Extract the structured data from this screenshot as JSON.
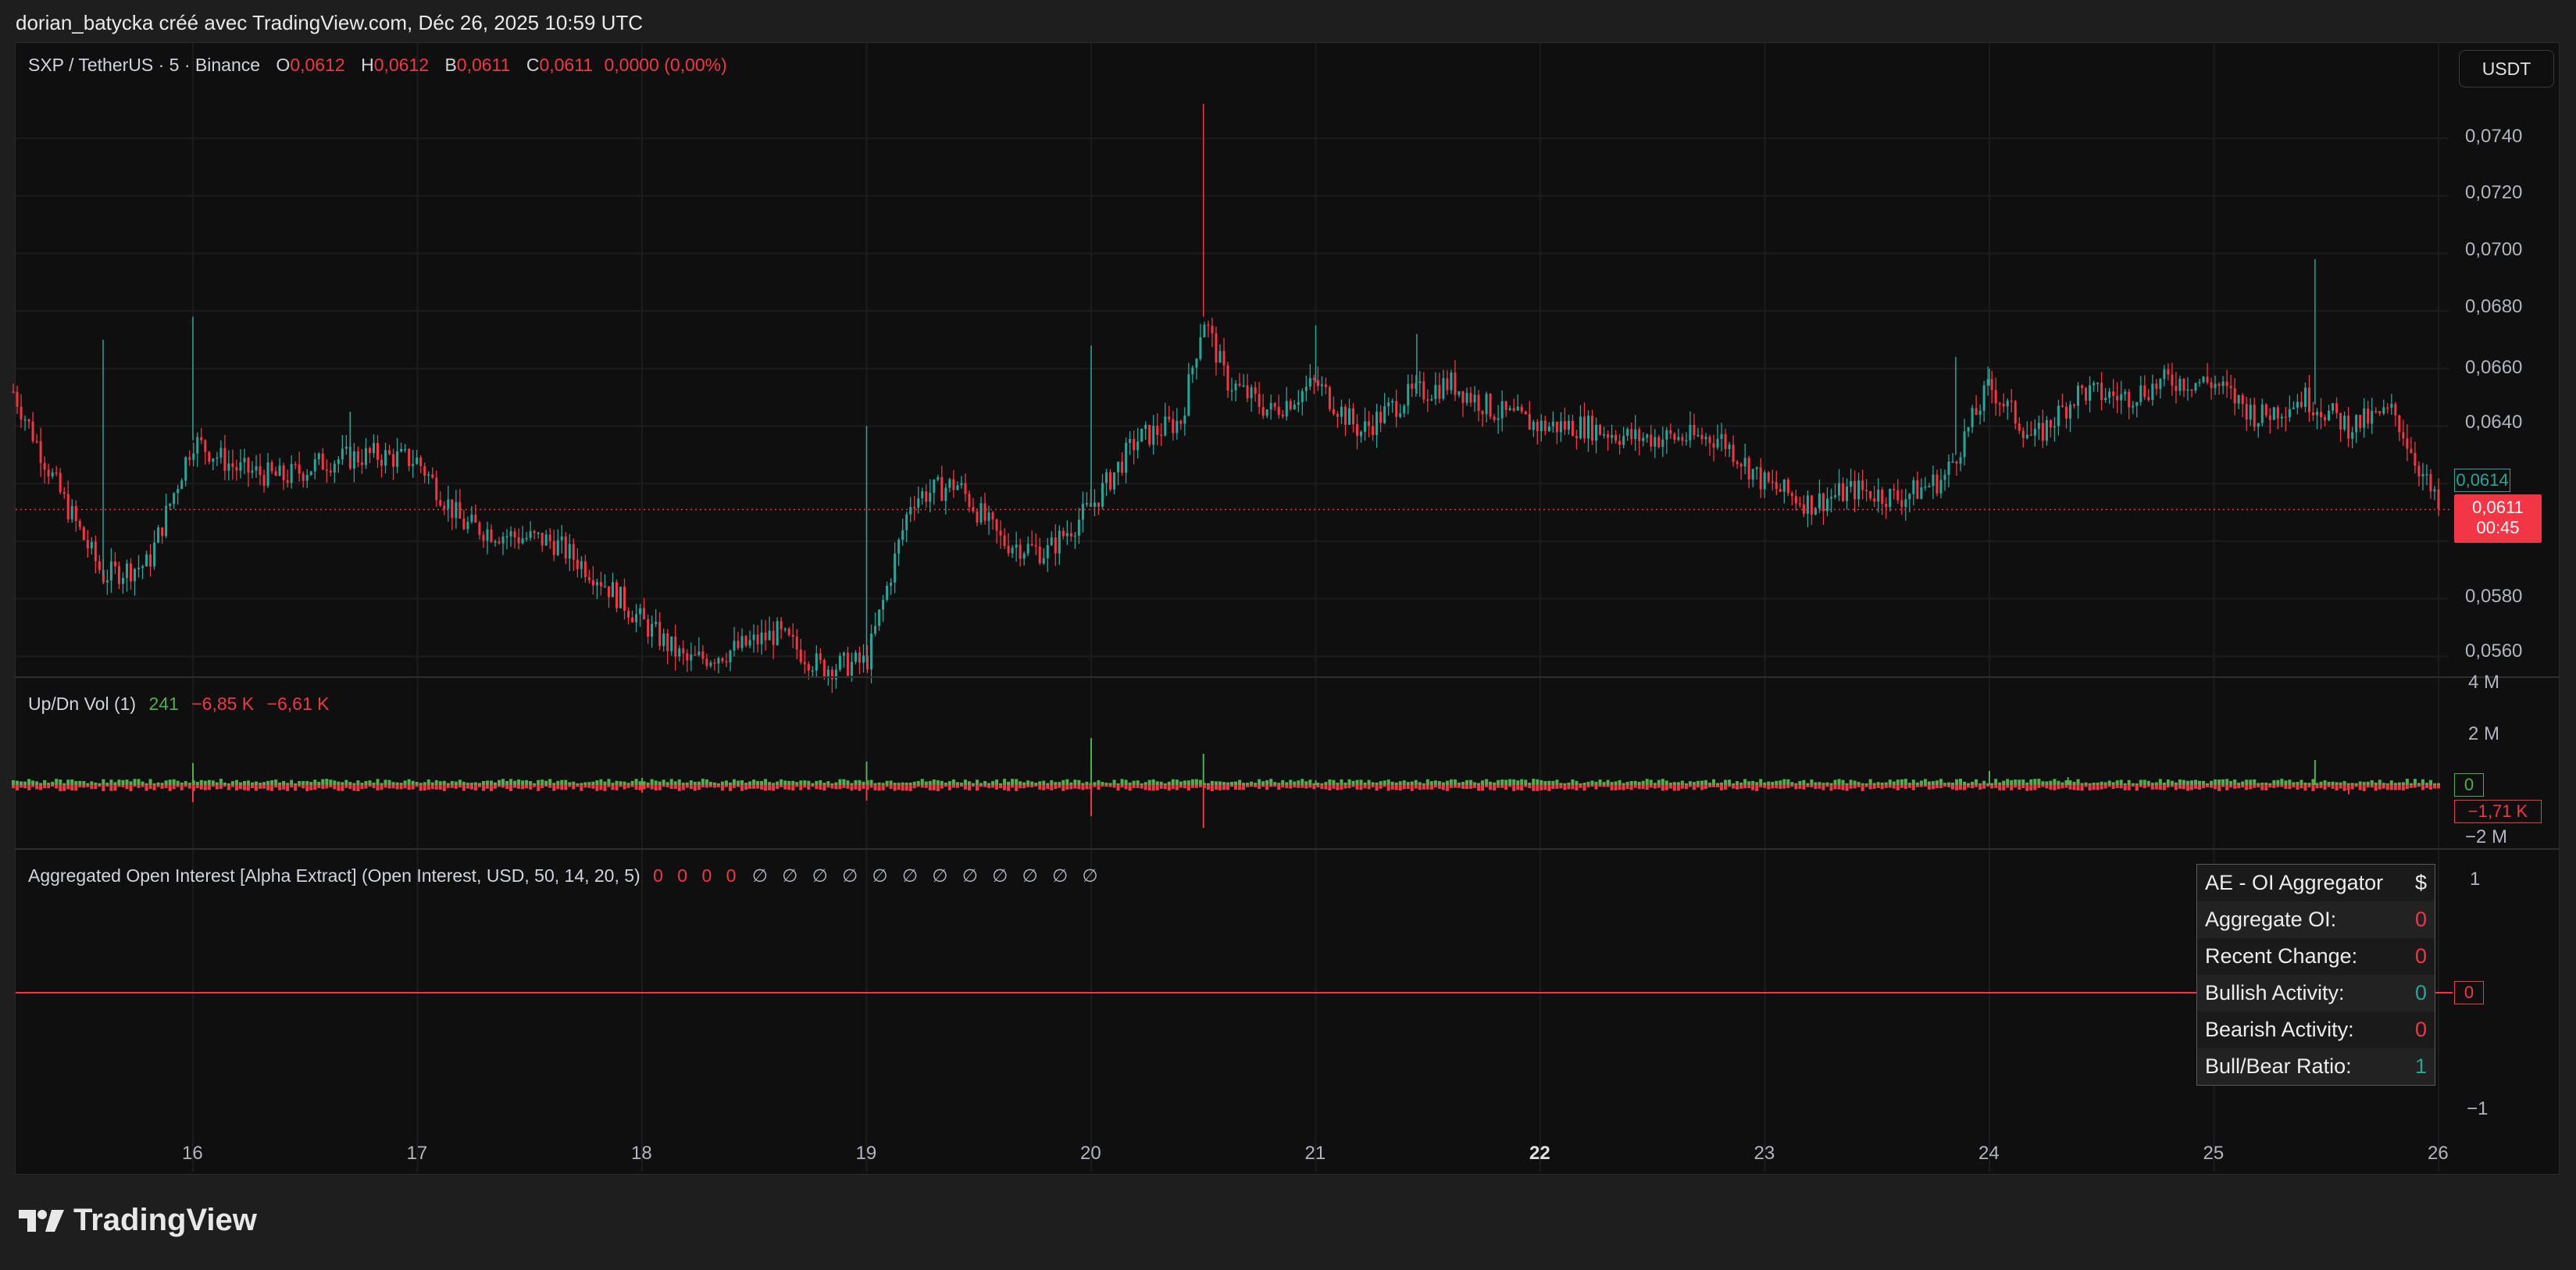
{
  "header": {
    "credit": "dorian_batycka créé avec TradingView.com, Déc 26, 2025 10:59 UTC"
  },
  "toolbar": {
    "currency": "USDT"
  },
  "legend_main": {
    "symbol": "SXP / TetherUS · 5 · Binance",
    "o_label": "O",
    "o": "0,0612",
    "h_label": "H",
    "h": "0,0612",
    "b_label": "B",
    "b": "0,0611",
    "c_label": "C",
    "c": "0,0611",
    "change": "0,0000 (0,00%)"
  },
  "legend_vol": {
    "name": "Up/Dn Vol (1)",
    "v1": "241",
    "v2": "−6,85 K",
    "v3": "−6,61 K"
  },
  "legend_oi": {
    "name": "Aggregated Open Interest [Alpha Extract] (Open Interest, USD, 50, 14, 20, 5)",
    "zeros": "0 0 0 0",
    "nulls": "∅ ∅ ∅ ∅ ∅ ∅ ∅ ∅ ∅ ∅ ∅ ∅"
  },
  "price_axis": [
    "0,0740",
    "0,0720",
    "0,0700",
    "0,0680",
    "0,0660",
    "0,0640",
    "0,0580",
    "0,0560"
  ],
  "price_tags": {
    "green": "0,0614",
    "red": "0,0611",
    "countdown": "00:45"
  },
  "vol_axis": [
    "4 M",
    "2 M",
    "−2 M"
  ],
  "vol_tags": {
    "green": "0",
    "red": "−1,71 K"
  },
  "oi_axis": [
    "1",
    "−1"
  ],
  "oi_tag": "0",
  "x_axis": [
    "16",
    "17",
    "18",
    "19",
    "20",
    "21",
    "22",
    "23",
    "24",
    "25",
    "26"
  ],
  "ae_table": {
    "title": "AE - OI Aggregator",
    "title_sym": "$",
    "rows": [
      {
        "label": "Aggregate OI:",
        "value": "0"
      },
      {
        "label": "Recent Change:",
        "value": "0"
      },
      {
        "label": "Bullish Activity:",
        "value": "0"
      },
      {
        "label": "Bearish Activity:",
        "value": "0"
      },
      {
        "label": "Bull/Bear Ratio:",
        "value": "1"
      }
    ]
  },
  "brand": {
    "name": "TradingView"
  },
  "colors": {
    "up": "#26a69a",
    "down": "#f23645",
    "vol_up": "#4caf50",
    "bg": "#0f0f0f"
  },
  "chart_data": {
    "type": "line",
    "title": "SXP / TetherUS · 5 · Binance",
    "xlabel": "",
    "ylabel": "",
    "ylim": [
      0.0553,
      0.0765
    ],
    "x_ticks": [
      "16",
      "17",
      "18",
      "19",
      "20",
      "21",
      "22",
      "23",
      "24",
      "25",
      "26"
    ],
    "x": [
      15.2,
      15.4,
      15.6,
      15.8,
      16.0,
      16.2,
      16.4,
      16.6,
      16.8,
      17.0,
      17.2,
      17.4,
      17.6,
      17.8,
      18.0,
      18.2,
      18.4,
      18.6,
      18.8,
      19.0,
      19.2,
      19.4,
      19.6,
      19.8,
      20.0,
      20.2,
      20.4,
      20.5,
      20.6,
      20.8,
      21.0,
      21.2,
      21.4,
      21.6,
      21.8,
      22.0,
      22.2,
      22.4,
      22.6,
      22.8,
      23.0,
      23.2,
      23.4,
      23.6,
      23.8,
      24.0,
      24.2,
      24.4,
      24.6,
      24.8,
      25.0,
      25.2,
      25.4,
      25.6,
      25.8,
      26.0
    ],
    "series": [
      {
        "values": [
          0.0652,
          0.0618,
          0.0588,
          0.0592,
          0.0635,
          0.0625,
          0.0622,
          0.0628,
          0.063,
          0.0628,
          0.0606,
          0.0602,
          0.06,
          0.0588,
          0.0572,
          0.0558,
          0.0562,
          0.0568,
          0.0556,
          0.0558,
          0.0615,
          0.062,
          0.06,
          0.0596,
          0.0612,
          0.0635,
          0.0642,
          0.0678,
          0.0656,
          0.0645,
          0.0655,
          0.0638,
          0.065,
          0.0655,
          0.0645,
          0.064,
          0.064,
          0.0636,
          0.0636,
          0.0636,
          0.062,
          0.0613,
          0.0618,
          0.0615,
          0.0622,
          0.0654,
          0.0635,
          0.0652,
          0.065,
          0.0656,
          0.0655,
          0.0643,
          0.065,
          0.064,
          0.0645,
          0.0611
        ]
      }
    ]
  }
}
